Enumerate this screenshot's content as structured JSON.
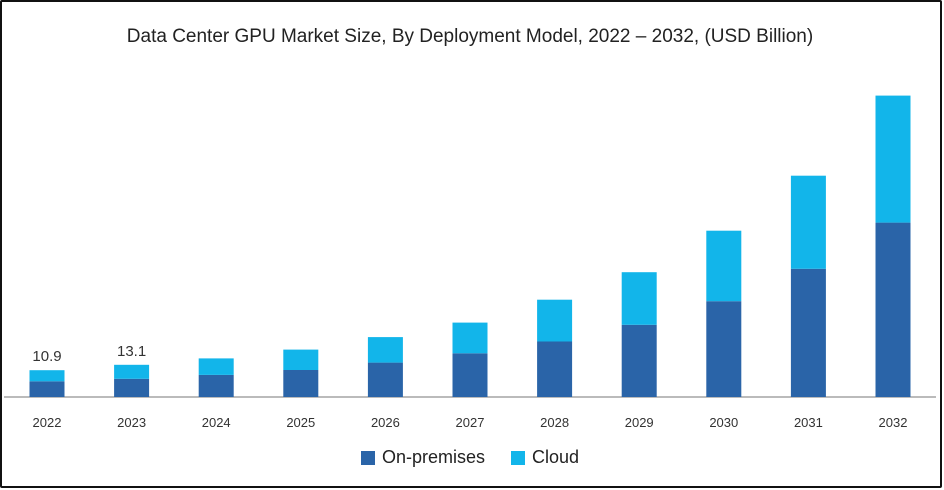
{
  "chart_data": {
    "type": "bar",
    "stacked": true,
    "title": "Data Center GPU Market Size, By Deployment Model, 2022 – 2032, (USD Billion)",
    "xlabel": "",
    "ylabel": "",
    "categories": [
      "2022",
      "2023",
      "2024",
      "2025",
      "2026",
      "2027",
      "2028",
      "2029",
      "2030",
      "2031",
      "2032"
    ],
    "series": [
      {
        "name": "On-premises",
        "color": "#2a64a8",
        "values": [
          6.4,
          7.4,
          9.0,
          11.0,
          14.0,
          17.8,
          22.6,
          29.4,
          39.0,
          52.2,
          71.0
        ]
      },
      {
        "name": "Cloud",
        "color": "#12b5ea",
        "values": [
          4.5,
          5.7,
          6.7,
          8.3,
          10.4,
          12.5,
          17.0,
          21.4,
          28.7,
          37.9,
          51.7
        ]
      }
    ],
    "data_labels": [
      {
        "category": "2022",
        "text": "10.9"
      },
      {
        "category": "2023",
        "text": "13.1"
      }
    ],
    "ylim": [
      0,
      125
    ],
    "grid": false,
    "legend_position": "bottom"
  }
}
